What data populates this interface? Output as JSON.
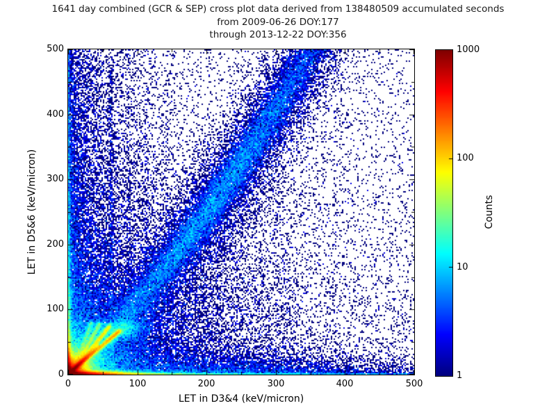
{
  "title": {
    "line1": "1641 day combined (GCR & SEP) cross plot data derived from 138480509 accumulated seconds",
    "line2": "from 2009-06-26 DOY:177",
    "line3": "through 2013-12-22 DOY:356"
  },
  "axes": {
    "xlabel": "LET in D3&4 (keV/micron)",
    "ylabel": "LET in D5&6 (keV/micron)",
    "x_tick_labels": [
      "0",
      "100",
      "200",
      "300",
      "400",
      "500"
    ],
    "y_tick_labels": [
      "500",
      "400",
      "300",
      "200",
      "100",
      "0"
    ],
    "x_major_ticks": [
      0,
      100,
      200,
      300,
      400,
      500
    ],
    "y_major_ticks": [
      0,
      100,
      200,
      300,
      400,
      500
    ],
    "x_minor_ticks": [
      50,
      150,
      250,
      350,
      450
    ],
    "y_minor_ticks": [
      50,
      150,
      250,
      350,
      450
    ]
  },
  "colorbar": {
    "label": "Counts",
    "tick_labels": [
      "1000",
      "100",
      "10",
      "1"
    ],
    "ticks": [
      1,
      10,
      100,
      1000
    ],
    "scale": "log",
    "colormap": "jet"
  },
  "layout_colors": {
    "background": "#ffffff",
    "frame": "#000000",
    "text": "#000000",
    "count_min_color": "#000080",
    "count_max_color": "#7f0000"
  },
  "chart_data": {
    "type": "heatmap",
    "title": "1641 day combined (GCR & SEP) cross plot data derived from 138480509 accumulated seconds from 2009-06-26 DOY:177 through 2013-12-22 DOY:356",
    "xlabel": "LET in D3&4 (keV/micron)",
    "ylabel": "LET in D5&6 (keV/micron)",
    "xlim": [
      0,
      500
    ],
    "ylim": [
      0,
      500
    ],
    "grid": false,
    "legend_position": "none",
    "color_scale": {
      "type": "log",
      "min": 1,
      "max": 1000,
      "colormap": "jet",
      "label": "Counts"
    },
    "bins_x": 249,
    "bins_y": 234,
    "render_seed": 42,
    "features": [
      {
        "kind": "background",
        "base": 0.05,
        "amp": 1.3,
        "scale": 150
      },
      {
        "kind": "radial_blob",
        "cx": 0,
        "cy": 0,
        "terms": [
          [
            2500,
            6.5
          ],
          [
            120,
            15
          ],
          [
            18,
            30
          ],
          [
            4,
            55
          ],
          [
            1.2,
            100
          ]
        ]
      },
      {
        "kind": "hband",
        "terms": [
          [
            1800,
            26,
            2.6
          ],
          [
            70,
            120,
            1.4
          ],
          [
            8,
            700,
            1.2
          ],
          [
            5,
            300,
            5.5
          ],
          [
            1.2,
            400,
            22
          ]
        ]
      },
      {
        "kind": "hbulge",
        "amp": 2.2,
        "cx": 220,
        "sx": 110,
        "sy": 14
      },
      {
        "kind": "vband",
        "terms": [
          [
            1600,
            13,
            2.4
          ],
          [
            60,
            55,
            2.0
          ],
          [
            7,
            800,
            1.2
          ],
          [
            5.5,
            350,
            4.5
          ],
          [
            2.5,
            140,
            12
          ],
          [
            1.0,
            450,
            26
          ]
        ]
      },
      {
        "kind": "diag_streak",
        "amp": 1300,
        "sdecay": 14,
        "width": 1.9,
        "smax": 45
      },
      {
        "kind": "segment",
        "x1": 13,
        "y1": 12,
        "x2": 73,
        "y2": 66,
        "amp": 90,
        "fade": 0.2,
        "peak": 60,
        "peak_t": 0.9,
        "peak_w": 0.25,
        "width": 1.8,
        "halo": 10,
        "halo_w": 5
      },
      {
        "kind": "segment",
        "x1": 13,
        "y1": 13,
        "x2": 59,
        "y2": 73,
        "amp": 60,
        "fade": 0.2,
        "peak": 30,
        "peak_t": 0.85,
        "peak_w": 0.3,
        "width": 1.8,
        "halo": 7,
        "halo_w": 5
      },
      {
        "kind": "segment",
        "x1": 12,
        "y1": 13,
        "x2": 45,
        "y2": 77,
        "amp": 40,
        "fade": 0.4,
        "peak": 0,
        "peak_t": 0.8,
        "peak_w": 0.3,
        "width": 1.8,
        "halo": 5,
        "halo_w": 5
      },
      {
        "kind": "segment",
        "x1": 11,
        "y1": 13,
        "x2": 33,
        "y2": 79,
        "amp": 22,
        "fade": 0.5,
        "peak": 0,
        "peak_t": 0.8,
        "peak_w": 0.3,
        "width": 1.7,
        "halo": 4,
        "halo_w": 4
      },
      {
        "kind": "gauss_blob",
        "cx": 81,
        "cy": 70,
        "sx": 9,
        "sy": 7,
        "amp": 10
      },
      {
        "kind": "gauss_blob",
        "cx": 92,
        "cy": 73,
        "sx": 14,
        "sy": 10,
        "amp": 4
      },
      {
        "kind": "banana",
        "a": 1.03,
        "b": 920,
        "amp": 4.0,
        "amp_cx": 200,
        "amp_cw": 150,
        "amp_base": 1.2,
        "w0": 11,
        "wslope": 0.05,
        "halo": 0.28,
        "fade_in": [
          15,
          55
        ]
      },
      {
        "kind": "below_fill",
        "amp": 1.6,
        "xdecay": 130
      },
      {
        "kind": "above_fill",
        "amp": 2.2,
        "xdecay": 60,
        "ydecay": 400
      },
      {
        "kind": "vstreak",
        "x": 62,
        "amp": 1.5,
        "ydecay": 700,
        "w": 1.6
      },
      {
        "kind": "vstreak",
        "x": 87,
        "amp": 0.8,
        "ydecay": 260,
        "w": 1.6
      },
      {
        "kind": "vstreak",
        "x": 112,
        "amp": 0.55,
        "ydecay": 400,
        "w": 1.6
      },
      {
        "kind": "vstreak",
        "x": 143,
        "amp": 0.35,
        "ydecay": 400,
        "w": 1.6
      },
      {
        "kind": "vstreak",
        "x": 204,
        "amp": 0.3,
        "ydecay": 800,
        "w": 1.6
      },
      {
        "kind": "vstreak",
        "x": 385,
        "amp": 0.22,
        "ydecay": 800,
        "w": 1.6
      }
    ]
  }
}
